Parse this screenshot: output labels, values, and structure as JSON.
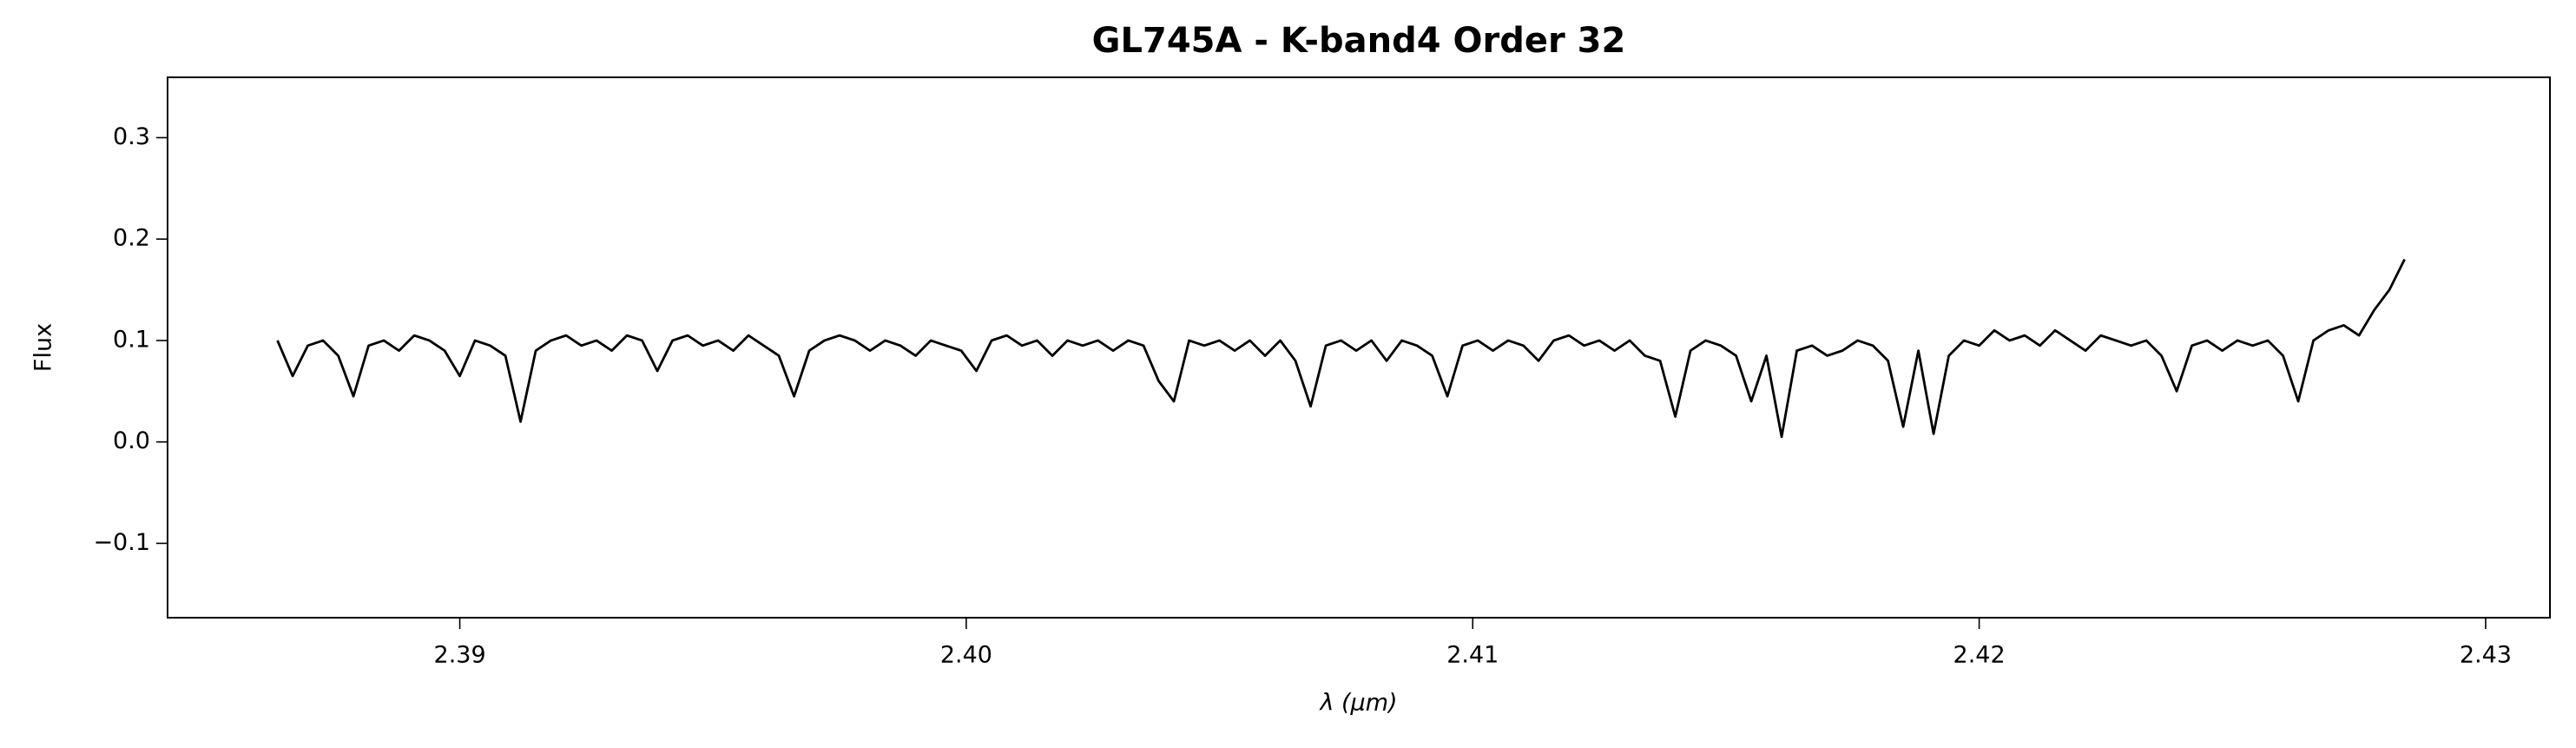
{
  "chart_data": {
    "type": "line",
    "title": "GL745A - K-band4 Order 32",
    "xlabel": "λ (μm)",
    "ylabel": "Flux",
    "color": "#000000",
    "xlim": [
      2.38423,
      2.43127
    ],
    "ylim": [
      -0.1733,
      0.3595
    ],
    "xticks": [
      2.39,
      {
        "value": 2.4,
        "label": "2.40"
      },
      2.41,
      2.42,
      2.43
    ],
    "yticks": [
      {
        "value": -0.1,
        "label": "−0.1"
      },
      {
        "value": 0,
        "label": "0.0"
      },
      0.1,
      0.2,
      0.3
    ],
    "grid": false,
    "x": [
      2.3864,
      2.3867,
      2.387,
      2.3873,
      2.3876,
      2.3879,
      2.3882,
      2.3885,
      2.3888,
      2.3891,
      2.3894,
      2.3897,
      2.39,
      2.3903,
      2.3906,
      2.3909,
      2.3912,
      2.3915,
      2.3918,
      2.3921,
      2.3924,
      2.3927,
      2.393,
      2.3933,
      2.3936,
      2.3939,
      2.3942,
      2.3945,
      2.3948,
      2.3951,
      2.3954,
      2.3957,
      2.396,
      2.3963,
      2.3966,
      2.3969,
      2.3972,
      2.3975,
      2.3978,
      2.3981,
      2.3984,
      2.3987,
      2.399,
      2.3993,
      2.3996,
      2.3999,
      2.4002,
      2.4005,
      2.4008,
      2.4011,
      2.4014,
      2.4017,
      2.402,
      2.4023,
      2.4026,
      2.4029,
      2.4032,
      2.4035,
      2.4038,
      2.4041,
      2.4044,
      2.4047,
      2.405,
      2.4053,
      2.4056,
      2.4059,
      2.4062,
      2.4065,
      2.4068,
      2.4071,
      2.4074,
      2.4077,
      2.408,
      2.4083,
      2.4086,
      2.4089,
      2.4092,
      2.4095,
      2.4098,
      2.4101,
      2.4104,
      2.4107,
      2.411,
      2.4113,
      2.4116,
      2.4119,
      2.4122,
      2.4125,
      2.4128,
      2.4131,
      2.4134,
      2.4137,
      2.414,
      2.4143,
      2.4146,
      2.4149,
      2.4152,
      2.4155,
      2.4158,
      2.4161,
      2.4164,
      2.4167,
      2.417,
      2.4173,
      2.4176,
      2.4179,
      2.4182,
      2.4185,
      2.4188,
      2.4191,
      2.4194,
      2.4197,
      2.42,
      2.4203,
      2.4206,
      2.4209,
      2.4212,
      2.4215,
      2.4218,
      2.4221,
      2.4224,
      2.4227,
      2.423,
      2.4233,
      2.4236,
      2.4239,
      2.4242,
      2.4245,
      2.4248,
      2.4251,
      2.4254,
      2.4257,
      2.426,
      2.4263,
      2.4266,
      2.4269,
      2.4272,
      2.4275,
      2.4278,
      2.4281,
      2.4284
    ],
    "values": [
      0.1,
      0.065,
      0.095,
      0.1,
      0.085,
      0.045,
      0.095,
      0.1,
      0.09,
      0.105,
      0.1,
      0.09,
      0.065,
      0.1,
      0.095,
      0.085,
      0.02,
      0.09,
      0.1,
      0.105,
      0.095,
      0.1,
      0.09,
      0.105,
      0.1,
      0.07,
      0.1,
      0.105,
      0.095,
      0.1,
      0.09,
      0.105,
      0.095,
      0.085,
      0.045,
      0.09,
      0.1,
      0.105,
      0.1,
      0.09,
      0.1,
      0.095,
      0.085,
      0.1,
      0.095,
      0.09,
      0.07,
      0.1,
      0.105,
      0.095,
      0.1,
      0.085,
      0.1,
      0.095,
      0.1,
      0.09,
      0.1,
      0.095,
      0.06,
      0.04,
      0.1,
      0.095,
      0.1,
      0.09,
      0.1,
      0.085,
      0.1,
      0.08,
      0.035,
      0.095,
      0.1,
      0.09,
      0.1,
      0.08,
      0.1,
      0.095,
      0.085,
      0.045,
      0.095,
      0.1,
      0.09,
      0.1,
      0.095,
      0.08,
      0.1,
      0.105,
      0.095,
      0.1,
      0.09,
      0.1,
      0.085,
      0.08,
      0.025,
      0.09,
      0.1,
      0.095,
      0.085,
      0.04,
      0.085,
      0.005,
      0.09,
      0.095,
      0.085,
      0.09,
      0.1,
      0.095,
      0.08,
      0.015,
      0.09,
      0.008,
      0.085,
      0.1,
      0.095,
      0.11,
      0.1,
      0.105,
      0.095,
      0.11,
      0.1,
      0.09,
      0.105,
      0.1,
      0.095,
      0.1,
      0.085,
      0.05,
      0.095,
      0.1,
      0.09,
      0.1,
      0.095,
      0.1,
      0.085,
      0.04,
      0.1,
      0.11,
      0.115,
      0.105,
      0.13,
      0.15,
      0.18
    ]
  }
}
